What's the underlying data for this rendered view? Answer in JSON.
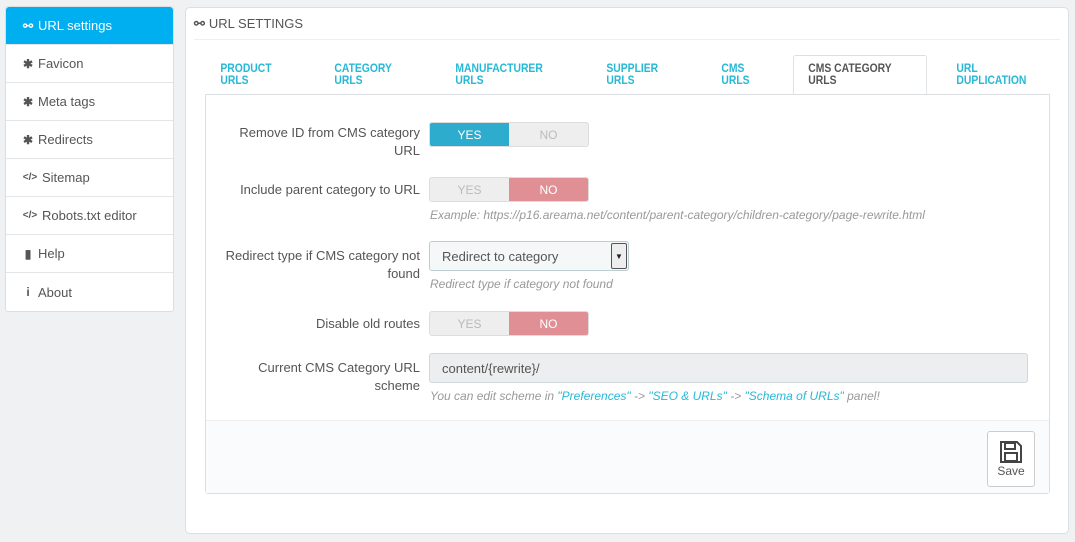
{
  "sidebar": {
    "items": [
      {
        "label": "URL settings",
        "icon": "link-icon",
        "glyph": "⚯"
      },
      {
        "label": "Favicon",
        "icon": "gear-icon",
        "glyph": "✱"
      },
      {
        "label": "Meta tags",
        "icon": "gear-icon",
        "glyph": "✱"
      },
      {
        "label": "Redirects",
        "icon": "gear-icon",
        "glyph": "✱"
      },
      {
        "label": "Sitemap",
        "icon": "code-icon",
        "glyph": "</>"
      },
      {
        "label": "Robots.txt editor",
        "icon": "code-icon",
        "glyph": "</>"
      },
      {
        "label": "Help",
        "icon": "book-icon",
        "glyph": "▮"
      },
      {
        "label": "About",
        "icon": "info-icon",
        "glyph": "i"
      }
    ]
  },
  "panel": {
    "title": "URL SETTINGS",
    "title_glyph": "⚯"
  },
  "tabs": [
    "PRODUCT URLS",
    "CATEGORY URLS",
    "MANUFACTURER URLS",
    "SUPPLIER URLS",
    "CMS URLS",
    "CMS CATEGORY URLS",
    "URL DUPLICATION"
  ],
  "active_tab": "CMS CATEGORY URLS",
  "form": {
    "remove_id": {
      "label": "Remove ID from CMS category URL",
      "yes": "YES",
      "no": "NO",
      "value": "YES"
    },
    "include_parent": {
      "label": "Include parent category to URL",
      "yes": "YES",
      "no": "NO",
      "value": "NO",
      "help": "Example: https://p16.areama.net/content/parent-category/children-category/page-rewrite.html"
    },
    "redirect_type": {
      "label": "Redirect type if CMS category not found",
      "value": "Redirect to category",
      "help": "Redirect type if category not found"
    },
    "disable_old": {
      "label": "Disable old routes",
      "yes": "YES",
      "no": "NO",
      "value": "NO"
    },
    "scheme": {
      "label": "Current CMS Category URL scheme",
      "value": "content/{rewrite}/",
      "help_pre": "You can edit scheme in ",
      "link1": "\"Preferences\"",
      "sep1": " -> ",
      "link2": "\"SEO & URLs\"",
      "sep2": " -> ",
      "link3": "\"Schema of URLs\"",
      "help_post": " panel!"
    }
  },
  "save": {
    "label": "Save"
  },
  "colors": {
    "accent": "#00aff0",
    "yes": "#2eacce",
    "no": "#e08f95",
    "link": "#25b9d7"
  }
}
